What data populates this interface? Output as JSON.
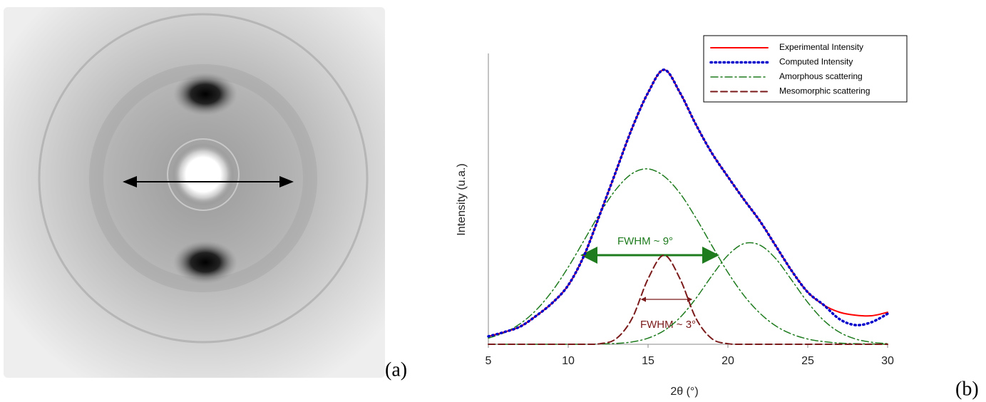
{
  "panel_a_label": "(a)",
  "chart_data": {
    "type": "line",
    "panel_label": "(b)",
    "x_label": "2θ (°)",
    "y_label": "Intensity (u.a.)",
    "xlim": [
      5,
      30
    ],
    "xticks": [
      5,
      10,
      15,
      20,
      25,
      30
    ],
    "ylim": [
      0,
      100
    ],
    "legend": "top-right",
    "annotations": [
      "FWHM ~ 9°",
      "FWHM ~ 3°"
    ],
    "x": [
      5,
      6,
      7,
      8,
      9,
      10,
      11,
      12,
      13,
      14,
      15,
      16,
      17,
      18,
      19,
      20,
      21,
      22,
      23,
      24,
      25,
      26,
      27,
      28,
      29,
      30
    ],
    "series": [
      {
        "name": "Experimental Intensity",
        "color": "#ff0000",
        "style": "solid",
        "values": [
          2.7,
          4.2,
          6.1,
          9.8,
          14.2,
          20.3,
          30.6,
          44.9,
          59.6,
          74.3,
          86.5,
          94.4,
          86.5,
          75.5,
          65.7,
          57.6,
          49.8,
          42.4,
          33.8,
          25.2,
          17.9,
          13.5,
          11.0,
          10.0,
          9.8,
          11.0
        ]
      },
      {
        "name": "Computed Intensity",
        "color": "#0000cc",
        "style": "dotted",
        "values": [
          2.7,
          4.2,
          6.1,
          9.8,
          14.2,
          20.3,
          30.6,
          44.9,
          59.6,
          74.3,
          86.5,
          94.4,
          86.5,
          75.5,
          65.7,
          57.6,
          49.8,
          42.4,
          33.8,
          25.2,
          17.9,
          13.5,
          8.6,
          6.6,
          7.6,
          10.5
        ]
      },
      {
        "name": "Amorphous scattering",
        "color": "#1e7b1e",
        "style": "dashdot",
        "values": [
          2.1,
          4.0,
          7.1,
          11.8,
          18.3,
          26.5,
          35.8,
          45.2,
          53.3,
          58.7,
          60.3,
          57.8,
          51.9,
          43.4,
          33.9,
          24.7,
          16.8,
          10.7,
          6.3,
          3.5,
          1.8,
          0.9,
          0.4,
          0.2,
          0.1,
          0
        ]
      },
      {
        "color": "#1e7b1e",
        "style": "dashdot",
        "values": [
          0,
          0,
          0,
          0,
          0,
          0,
          0,
          0.1,
          0.3,
          0.8,
          2.1,
          4.7,
          9.2,
          15.8,
          23.6,
          30.6,
          34.6,
          34.1,
          29.4,
          22.0,
          14.4,
          8.2,
          4.1,
          1.8,
          0.7,
          0.2
        ]
      },
      {
        "name": "Mesomorphic scattering",
        "color": "#7b1a1a",
        "style": "dashed",
        "values": [
          0,
          0,
          0,
          0,
          0,
          0,
          0,
          0.2,
          1.9,
          8.9,
          22.5,
          30.6,
          22.5,
          8.9,
          1.9,
          0.2,
          0,
          0,
          0,
          0,
          0,
          0,
          0,
          0,
          0,
          0
        ]
      }
    ]
  }
}
